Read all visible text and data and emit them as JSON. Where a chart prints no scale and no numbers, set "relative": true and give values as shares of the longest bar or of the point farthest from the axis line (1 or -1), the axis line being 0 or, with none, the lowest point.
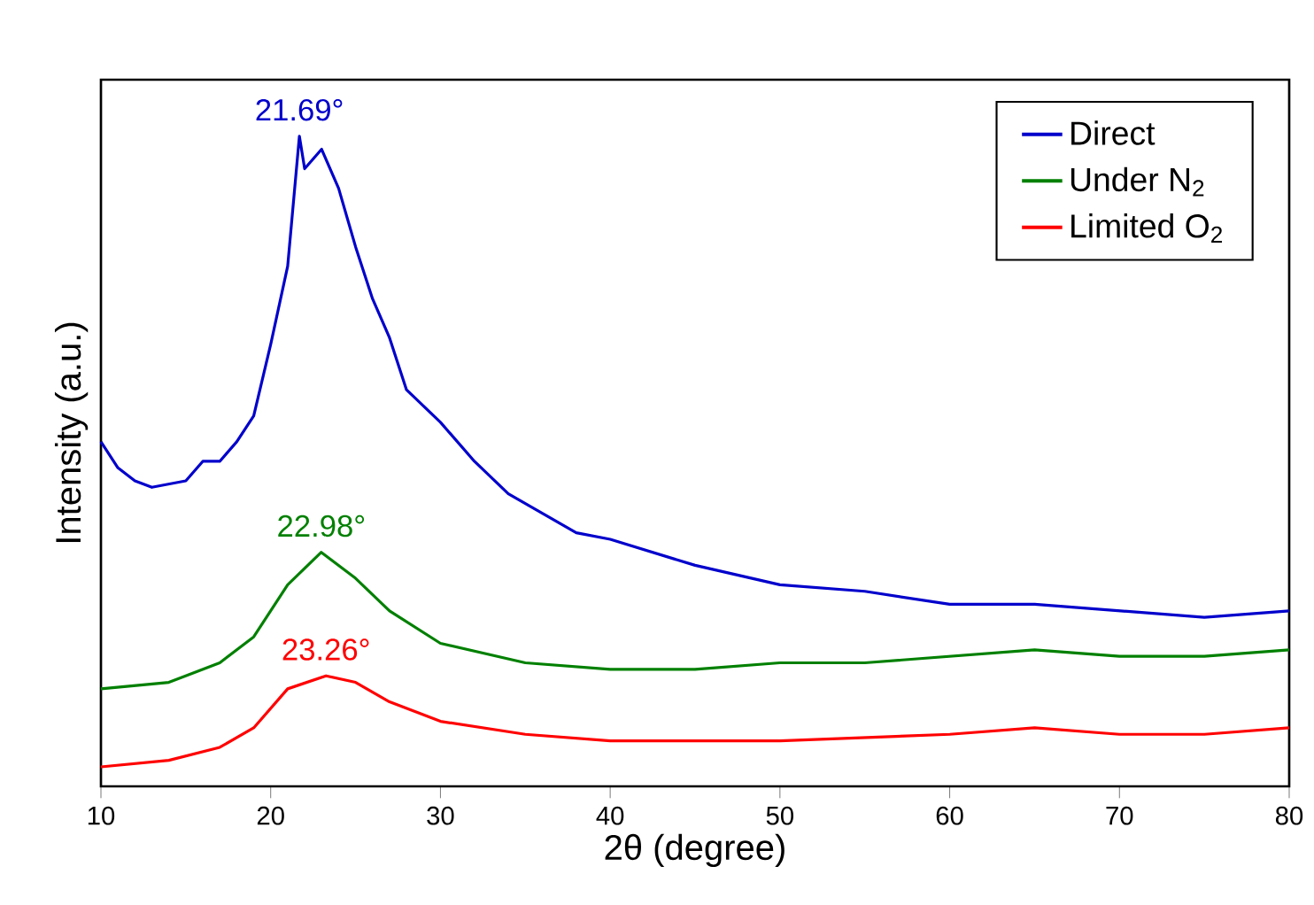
{
  "chart_data": {
    "type": "line",
    "relative": true,
    "xlabel": "2θ (degree)",
    "ylabel": "Intensity (a.u.)",
    "xlim": [
      10,
      80
    ],
    "xticks": [
      10,
      20,
      30,
      40,
      50,
      60,
      70,
      80
    ],
    "grid": false,
    "legend": "top right",
    "marker": "none",
    "line_style": "solid",
    "series": [
      {
        "name": "Direct",
        "color": "#0000cc",
        "x": [
          10,
          11,
          12,
          13,
          15,
          16,
          17,
          18,
          19,
          20,
          21,
          21.69,
          22,
          23,
          24,
          25,
          26,
          27,
          28,
          30,
          32,
          34,
          36,
          38,
          40,
          45,
          50,
          55,
          60,
          65,
          70,
          75,
          80
        ],
        "values": [
          0.53,
          0.49,
          0.47,
          0.46,
          0.47,
          0.5,
          0.5,
          0.53,
          0.57,
          0.68,
          0.8,
          1.0,
          0.95,
          0.98,
          0.92,
          0.83,
          0.75,
          0.69,
          0.61,
          0.56,
          0.5,
          0.45,
          0.42,
          0.39,
          0.38,
          0.34,
          0.31,
          0.3,
          0.28,
          0.28,
          0.27,
          0.26,
          0.27
        ]
      },
      {
        "name": "Under N$_{2}$",
        "color": "#008000",
        "x": [
          10,
          14,
          17,
          19,
          21,
          22.98,
          25,
          27,
          30,
          35,
          40,
          45,
          50,
          55,
          60,
          65,
          70,
          75,
          80
        ],
        "values": [
          0.15,
          0.16,
          0.19,
          0.23,
          0.31,
          0.36,
          0.32,
          0.27,
          0.22,
          0.19,
          0.18,
          0.18,
          0.19,
          0.19,
          0.2,
          0.21,
          0.2,
          0.2,
          0.21
        ]
      },
      {
        "name": "Limited O$_{2}$",
        "color": "#ff0000",
        "x": [
          10,
          14,
          17,
          19,
          21,
          23.26,
          25,
          27,
          30,
          35,
          40,
          45,
          50,
          60,
          65,
          70,
          75,
          80
        ],
        "values": [
          0.03,
          0.04,
          0.06,
          0.09,
          0.15,
          0.17,
          0.16,
          0.13,
          0.1,
          0.08,
          0.07,
          0.07,
          0.07,
          0.08,
          0.09,
          0.08,
          0.08,
          0.09
        ]
      }
    ],
    "annotations": [
      {
        "text": "21.69°",
        "x": 21.69,
        "y": 1.0
      },
      {
        "text": "22.98°",
        "x": 22.98,
        "y": 0.36
      },
      {
        "text": "23.26°",
        "x": 23.26,
        "y": 0.17
      }
    ]
  }
}
